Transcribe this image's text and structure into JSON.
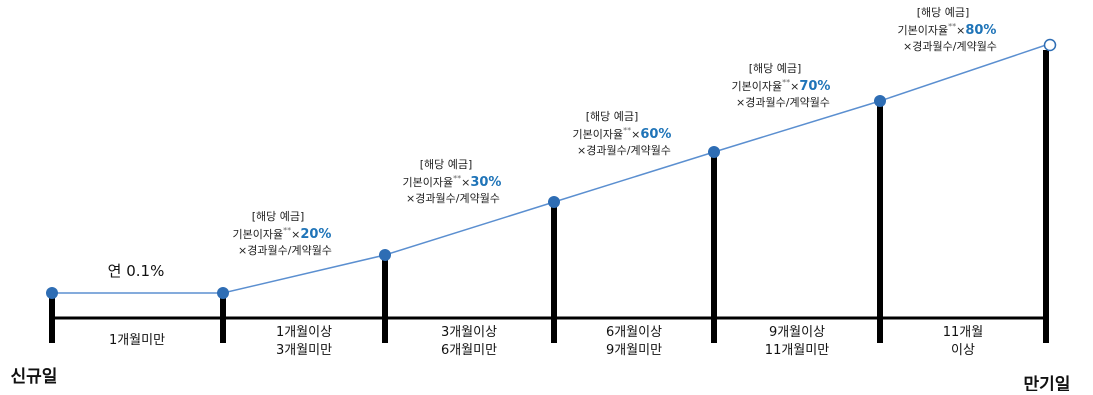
{
  "rate_label": "연 0.1%",
  "start_label": "신규일",
  "end_label": "만기일",
  "segments": [
    {
      "line1": "1개월미만",
      "line2": ""
    },
    {
      "line1": "1개월이상",
      "line2": "3개월미만"
    },
    {
      "line1": "3개월이상",
      "line2": "6개월미만"
    },
    {
      "line1": "6개월이상",
      "line2": "9개월미만"
    },
    {
      "line1": "9개월이상",
      "line2": "11개월미만"
    },
    {
      "line1": "11개월",
      "line2": "이상"
    }
  ],
  "notes": [
    {
      "line1": "[해당 예금]",
      "line2_prefix": "기본이자율",
      "sup": "**",
      "times": "×",
      "pct": "20%",
      "line3": "×경과월수/계약월수"
    },
    {
      "line1": "[해당 예금]",
      "line2_prefix": "기본이자율",
      "sup": "**",
      "times": "×",
      "pct": "30%",
      "line3": "×경과월수/계약월수"
    },
    {
      "line1": "[해당 예금]",
      "line2_prefix": "기본이자율",
      "sup": "**",
      "times": "×",
      "pct": "60%",
      "line3": "×경과월수/계약월수"
    },
    {
      "line1": "[해당 예금]",
      "line2_prefix": "기본이자율",
      "sup": "**",
      "times": "×",
      "pct": "70%",
      "line3": "×경과월수/계약월수"
    },
    {
      "line1": "[해당 예금]",
      "line2_prefix": "기본이자율",
      "sup": "**",
      "times": "×",
      "pct": "80%",
      "line3": "×경과월수/계약월수"
    }
  ],
  "colors": {
    "line": "#5b8fd0",
    "dot": "#2e6db4",
    "bar": "#000000",
    "pct": "#1f74b8"
  }
}
